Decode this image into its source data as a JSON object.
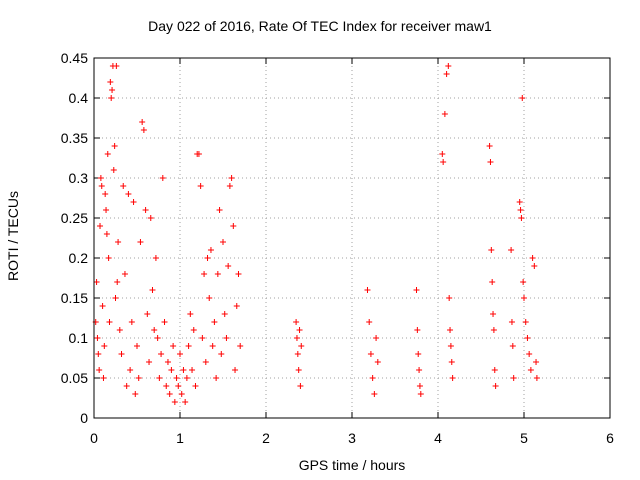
{
  "chart_data": {
    "type": "scatter",
    "title": "Day 022 of 2016, Rate Of TEC Index for receiver maw1",
    "xlabel": "GPS time / hours",
    "ylabel": "ROTI / TECUs",
    "xlim": [
      0,
      6
    ],
    "ylim": [
      0,
      0.45
    ],
    "x_ticks": [
      "0",
      "1",
      "2",
      "3",
      "4",
      "5",
      "6"
    ],
    "y_ticks": [
      "0",
      "0.05",
      "0.1",
      "0.15",
      "0.2",
      "0.25",
      "0.3",
      "0.35",
      "0.4",
      "0.45"
    ],
    "grid": true,
    "marker": "+",
    "marker_color": "#ff0000",
    "series": [
      {
        "name": "ROTI",
        "points": [
          [
            0.02,
            0.12
          ],
          [
            0.03,
            0.17
          ],
          [
            0.04,
            0.1
          ],
          [
            0.05,
            0.08
          ],
          [
            0.06,
            0.06
          ],
          [
            0.07,
            0.24
          ],
          [
            0.08,
            0.3
          ],
          [
            0.09,
            0.29
          ],
          [
            0.1,
            0.14
          ],
          [
            0.11,
            0.05
          ],
          [
            0.12,
            0.09
          ],
          [
            0.13,
            0.28
          ],
          [
            0.14,
            0.26
          ],
          [
            0.15,
            0.23
          ],
          [
            0.16,
            0.33
          ],
          [
            0.17,
            0.2
          ],
          [
            0.18,
            0.12
          ],
          [
            0.19,
            0.42
          ],
          [
            0.2,
            0.4
          ],
          [
            0.21,
            0.41
          ],
          [
            0.22,
            0.44
          ],
          [
            0.23,
            0.31
          ],
          [
            0.24,
            0.34
          ],
          [
            0.25,
            0.15
          ],
          [
            0.26,
            0.44
          ],
          [
            0.27,
            0.17
          ],
          [
            0.28,
            0.22
          ],
          [
            0.3,
            0.11
          ],
          [
            0.32,
            0.08
          ],
          [
            0.34,
            0.29
          ],
          [
            0.36,
            0.18
          ],
          [
            0.38,
            0.04
          ],
          [
            0.4,
            0.28
          ],
          [
            0.42,
            0.06
          ],
          [
            0.44,
            0.12
          ],
          [
            0.46,
            0.27
          ],
          [
            0.48,
            0.03
          ],
          [
            0.5,
            0.09
          ],
          [
            0.52,
            0.05
          ],
          [
            0.54,
            0.22
          ],
          [
            0.56,
            0.37
          ],
          [
            0.58,
            0.36
          ],
          [
            0.6,
            0.26
          ],
          [
            0.62,
            0.13
          ],
          [
            0.64,
            0.07
          ],
          [
            0.66,
            0.25
          ],
          [
            0.68,
            0.16
          ],
          [
            0.7,
            0.11
          ],
          [
            0.72,
            0.2
          ],
          [
            0.74,
            0.1
          ],
          [
            0.76,
            0.05
          ],
          [
            0.78,
            0.08
          ],
          [
            0.8,
            0.3
          ],
          [
            0.82,
            0.12
          ],
          [
            0.84,
            0.04
          ],
          [
            0.86,
            0.07
          ],
          [
            0.88,
            0.03
          ],
          [
            0.9,
            0.06
          ],
          [
            0.92,
            0.09
          ],
          [
            0.94,
            0.02
          ],
          [
            0.96,
            0.05
          ],
          [
            0.98,
            0.04
          ],
          [
            1.0,
            0.08
          ],
          [
            1.02,
            0.03
          ],
          [
            1.04,
            0.06
          ],
          [
            1.06,
            0.02
          ],
          [
            1.08,
            0.05
          ],
          [
            1.1,
            0.09
          ],
          [
            1.12,
            0.13
          ],
          [
            1.14,
            0.06
          ],
          [
            1.16,
            0.11
          ],
          [
            1.18,
            0.04
          ],
          [
            1.2,
            0.33
          ],
          [
            1.22,
            0.33
          ],
          [
            1.24,
            0.29
          ],
          [
            1.26,
            0.1
          ],
          [
            1.28,
            0.18
          ],
          [
            1.3,
            0.07
          ],
          [
            1.32,
            0.2
          ],
          [
            1.34,
            0.15
          ],
          [
            1.36,
            0.21
          ],
          [
            1.38,
            0.09
          ],
          [
            1.4,
            0.12
          ],
          [
            1.42,
            0.05
          ],
          [
            1.44,
            0.18
          ],
          [
            1.46,
            0.26
          ],
          [
            1.48,
            0.08
          ],
          [
            1.5,
            0.22
          ],
          [
            1.52,
            0.13
          ],
          [
            1.54,
            0.1
          ],
          [
            1.56,
            0.19
          ],
          [
            1.58,
            0.29
          ],
          [
            1.6,
            0.3
          ],
          [
            1.62,
            0.24
          ],
          [
            1.64,
            0.06
          ],
          [
            1.66,
            0.14
          ],
          [
            1.68,
            0.18
          ],
          [
            1.7,
            0.09
          ],
          [
            2.35,
            0.12
          ],
          [
            2.36,
            0.1
          ],
          [
            2.37,
            0.08
          ],
          [
            2.38,
            0.06
          ],
          [
            2.39,
            0.11
          ],
          [
            2.4,
            0.04
          ],
          [
            2.41,
            0.09
          ],
          [
            3.18,
            0.16
          ],
          [
            3.2,
            0.12
          ],
          [
            3.22,
            0.08
          ],
          [
            3.24,
            0.05
          ],
          [
            3.26,
            0.03
          ],
          [
            3.28,
            0.1
          ],
          [
            3.3,
            0.07
          ],
          [
            3.75,
            0.16
          ],
          [
            3.76,
            0.11
          ],
          [
            3.77,
            0.08
          ],
          [
            3.78,
            0.06
          ],
          [
            3.79,
            0.04
          ],
          [
            3.8,
            0.03
          ],
          [
            4.05,
            0.33
          ],
          [
            4.06,
            0.32
          ],
          [
            4.08,
            0.38
          ],
          [
            4.1,
            0.43
          ],
          [
            4.12,
            0.44
          ],
          [
            4.13,
            0.15
          ],
          [
            4.14,
            0.11
          ],
          [
            4.15,
            0.09
          ],
          [
            4.16,
            0.07
          ],
          [
            4.17,
            0.05
          ],
          [
            4.6,
            0.34
          ],
          [
            4.61,
            0.32
          ],
          [
            4.62,
            0.21
          ],
          [
            4.63,
            0.17
          ],
          [
            4.64,
            0.13
          ],
          [
            4.65,
            0.11
          ],
          [
            4.66,
            0.06
          ],
          [
            4.67,
            0.04
          ],
          [
            4.85,
            0.21
          ],
          [
            4.86,
            0.12
          ],
          [
            4.87,
            0.09
          ],
          [
            4.88,
            0.05
          ],
          [
            4.95,
            0.27
          ],
          [
            4.96,
            0.26
          ],
          [
            4.97,
            0.25
          ],
          [
            4.98,
            0.4
          ],
          [
            4.99,
            0.17
          ],
          [
            5.0,
            0.15
          ],
          [
            5.02,
            0.12
          ],
          [
            5.04,
            0.1
          ],
          [
            5.06,
            0.08
          ],
          [
            5.08,
            0.06
          ],
          [
            5.1,
            0.2
          ],
          [
            5.12,
            0.19
          ],
          [
            5.14,
            0.07
          ],
          [
            5.15,
            0.05
          ]
        ]
      }
    ]
  }
}
